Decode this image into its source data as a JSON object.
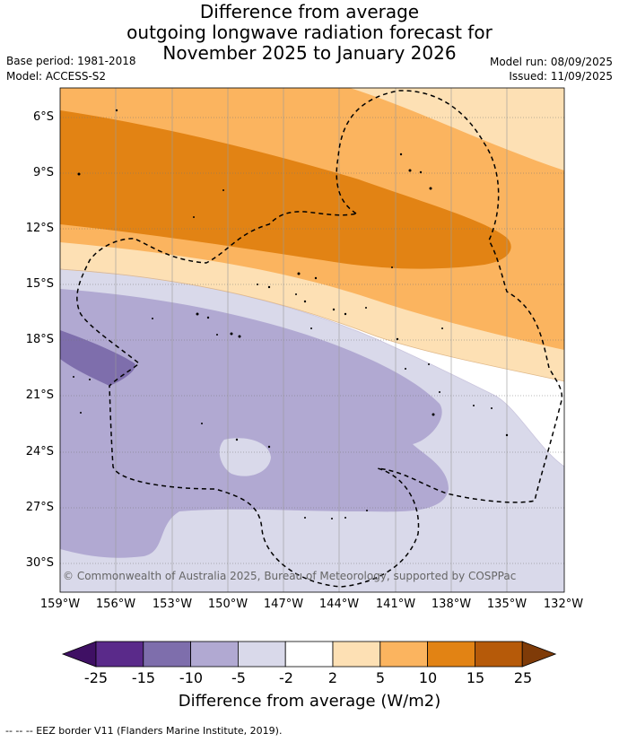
{
  "title": {
    "line1": "Difference from average",
    "line2": "outgoing longwave radiation forecast for",
    "line3": "November 2025 to January 2026"
  },
  "meta": {
    "base_period": "Base period: 1981-2018",
    "model": "Model: ACCESS-S2",
    "model_run": "Model run: 08/09/2025",
    "issued": "Issued: 11/09/2025"
  },
  "map": {
    "lat_labels": [
      "6°S",
      "9°S",
      "12°S",
      "15°S",
      "18°S",
      "21°S",
      "24°S",
      "27°S",
      "30°S"
    ],
    "lon_labels": [
      "159°W",
      "156°W",
      "153°W",
      "150°W",
      "147°W",
      "144°W",
      "141°W",
      "138°W",
      "135°W",
      "132°W"
    ],
    "copyright": "© Commonwealth of Australia 2025, Bureau of Meteorology, supported by COSPPac"
  },
  "colorbar": {
    "ticks": [
      "-25",
      "-15",
      "-10",
      "-5",
      "-2",
      "2",
      "5",
      "10",
      "15",
      "25"
    ],
    "colors": [
      "#3f1064",
      "#5a2a8a",
      "#7e6eac",
      "#b1a9d2",
      "#d9d9ea",
      "#ffffff",
      "#fde0b4",
      "#fbb45f",
      "#e28314",
      "#b65a09",
      "#7f3b08"
    ],
    "title": "Difference from average (W/m2)"
  },
  "footer": "-- -- -- EEZ border V11 (Flanders Marine Institute, 2019)."
}
